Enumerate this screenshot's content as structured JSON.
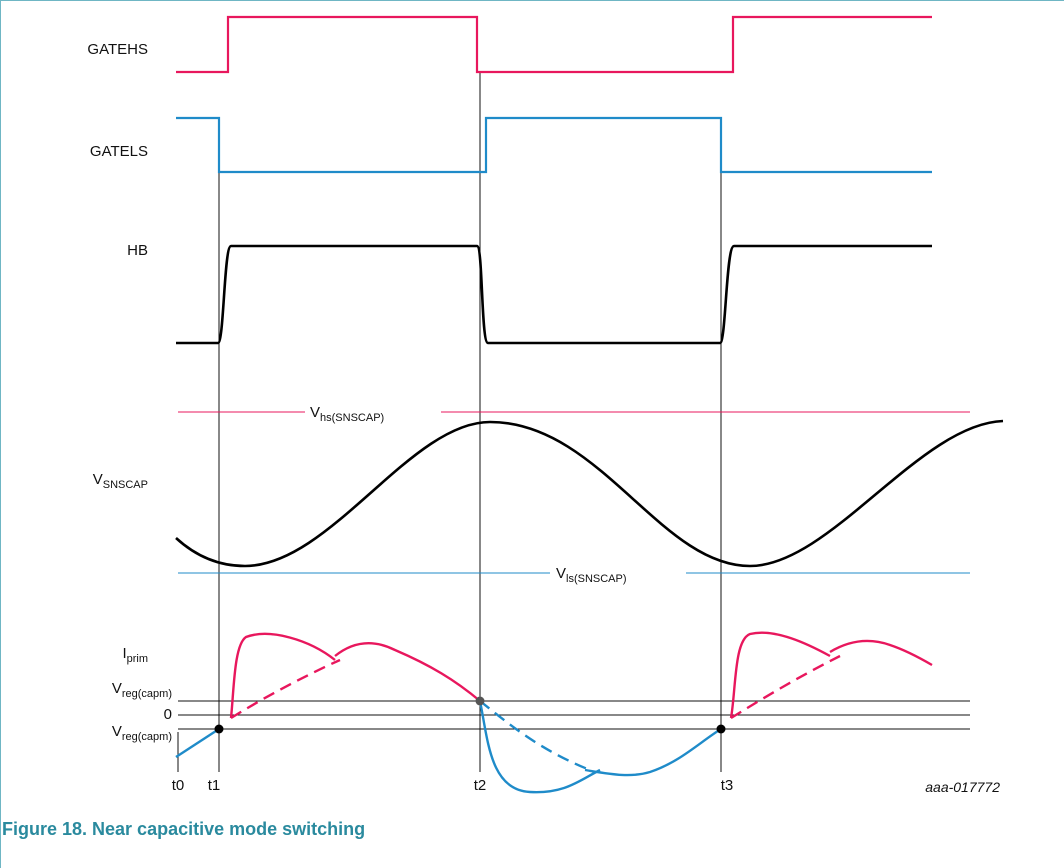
{
  "colors": {
    "hs": "#e8175d",
    "ls": "#1f8bc9",
    "hb": "#000000",
    "caption": "#2a8a9e",
    "border": "#6fb6c4",
    "gridline": "#111111"
  },
  "signals": {
    "gatehs": "GATEHS",
    "gatels": "GATELS",
    "hb": "HB",
    "vsnscap": {
      "main": "V",
      "sub": "SNSCAP"
    },
    "iprim": {
      "main": "I",
      "sub": "prim"
    },
    "vreg_top": {
      "main": "V",
      "sub": "reg(capm)"
    },
    "zero": "0",
    "vreg_bottom": {
      "main": "V",
      "sub": "reg(capm)"
    }
  },
  "thresholds": {
    "vhs": {
      "main": "V",
      "sub": "hs(SNSCAP)"
    },
    "vls": {
      "main": "V",
      "sub": "ls(SNSCAP)"
    }
  },
  "time_markers": [
    "t0",
    "t1",
    "t2",
    "t3"
  ],
  "diagram_code": "aaa-017772",
  "caption": "Figure 18.  Near capacitive mode switching"
}
